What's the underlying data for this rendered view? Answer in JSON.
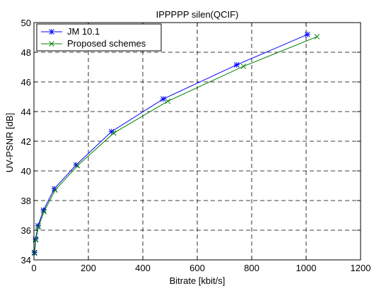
{
  "chart_data": {
    "type": "line",
    "title": "IPPPPP silen(QCIF)",
    "xlabel": "Bitrate [kbit/s]",
    "ylabel": "UV-PSNR [dB]",
    "xlim": [
      0,
      1200
    ],
    "ylim": [
      34,
      50
    ],
    "xticks": [
      0,
      200,
      400,
      600,
      800,
      1000,
      1200
    ],
    "yticks": [
      34,
      36,
      38,
      40,
      42,
      44,
      46,
      48,
      50
    ],
    "xtick_labels": [
      "0",
      "200",
      "400",
      "600",
      "800",
      "1000",
      "1200"
    ],
    "ytick_labels": [
      "34",
      "36",
      "38",
      "40",
      "42",
      "44",
      "46",
      "48",
      "50"
    ],
    "grid": true,
    "legend_position": "top-left",
    "series": [
      {
        "name": "JM 10.1",
        "color": "#0000ff",
        "marker": "star",
        "points": [
          {
            "x": 2,
            "y": 34.5
          },
          {
            "x": 6,
            "y": 35.4
          },
          {
            "x": 15,
            "y": 36.3
          },
          {
            "x": 35,
            "y": 37.35
          },
          {
            "x": 75,
            "y": 38.8
          },
          {
            "x": 155,
            "y": 40.4
          },
          {
            "x": 285,
            "y": 42.65
          },
          {
            "x": 475,
            "y": 44.85
          },
          {
            "x": 745,
            "y": 47.15
          },
          {
            "x": 1005,
            "y": 49.2
          }
        ]
      },
      {
        "name": "Proposed schemes",
        "color": "#008000",
        "marker": "x",
        "points": [
          {
            "x": 2,
            "y": 34.45
          },
          {
            "x": 7,
            "y": 35.35
          },
          {
            "x": 16,
            "y": 36.2
          },
          {
            "x": 37,
            "y": 37.25
          },
          {
            "x": 78,
            "y": 38.7
          },
          {
            "x": 160,
            "y": 40.35
          },
          {
            "x": 293,
            "y": 42.55
          },
          {
            "x": 492,
            "y": 44.7
          },
          {
            "x": 770,
            "y": 47.05
          },
          {
            "x": 1040,
            "y": 49.05
          }
        ]
      }
    ]
  }
}
